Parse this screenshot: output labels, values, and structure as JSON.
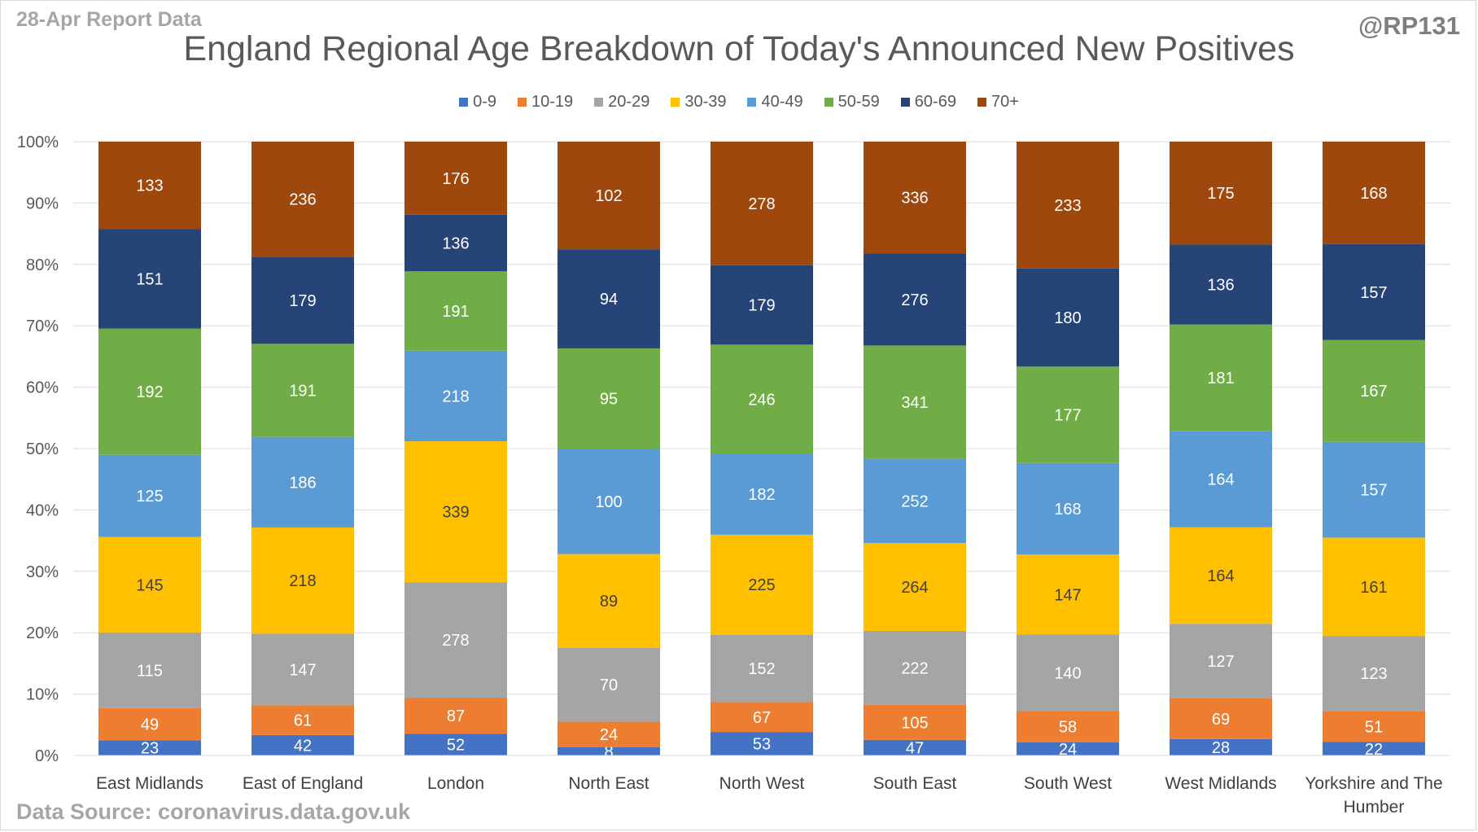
{
  "header": {
    "report_label": "28-Apr Report Data",
    "handle": "@RP131",
    "source": "Data Source: coronavirus.data.gov.uk"
  },
  "chart_data": {
    "type": "bar",
    "stacked": "percent",
    "title": "England Regional Age Breakdown of Today's Announced New Positives",
    "xlabel": "",
    "ylabel": "",
    "ylim": [
      0,
      100
    ],
    "y_ticks": [
      "0%",
      "10%",
      "20%",
      "30%",
      "40%",
      "50%",
      "60%",
      "70%",
      "80%",
      "90%",
      "100%"
    ],
    "grid": true,
    "legend_position": "top",
    "categories": [
      "East Midlands",
      "East of England",
      "London",
      "North East",
      "North West",
      "South East",
      "South West",
      "West Midlands",
      "Yorkshire and The Humber"
    ],
    "series": [
      {
        "name": "0-9",
        "color": "#4472c4",
        "label_color": "#ffffff",
        "values": [
          23,
          42,
          52,
          8,
          53,
          47,
          24,
          28,
          22
        ]
      },
      {
        "name": "10-19",
        "color": "#ed7d31",
        "label_color": "#ffffff",
        "values": [
          49,
          61,
          87,
          24,
          67,
          105,
          58,
          69,
          51
        ]
      },
      {
        "name": "20-29",
        "color": "#a5a5a5",
        "label_color": "#ffffff",
        "values": [
          115,
          147,
          278,
          70,
          152,
          222,
          140,
          127,
          123
        ]
      },
      {
        "name": "30-39",
        "color": "#ffc000",
        "label_color": "#404040",
        "values": [
          145,
          218,
          339,
          89,
          225,
          264,
          147,
          164,
          161
        ]
      },
      {
        "name": "40-49",
        "color": "#5b9bd5",
        "label_color": "#ffffff",
        "values": [
          125,
          186,
          218,
          100,
          182,
          252,
          168,
          164,
          157
        ]
      },
      {
        "name": "50-59",
        "color": "#70ad47",
        "label_color": "#ffffff",
        "values": [
          192,
          191,
          191,
          95,
          246,
          341,
          177,
          181,
          167
        ]
      },
      {
        "name": "60-69",
        "color": "#264478",
        "label_color": "#ffffff",
        "values": [
          151,
          179,
          136,
          94,
          179,
          276,
          180,
          136,
          157
        ]
      },
      {
        "name": "70+",
        "color": "#9e480e",
        "label_color": "#ffffff",
        "values": [
          133,
          236,
          176,
          102,
          278,
          336,
          233,
          175,
          168
        ]
      }
    ]
  }
}
